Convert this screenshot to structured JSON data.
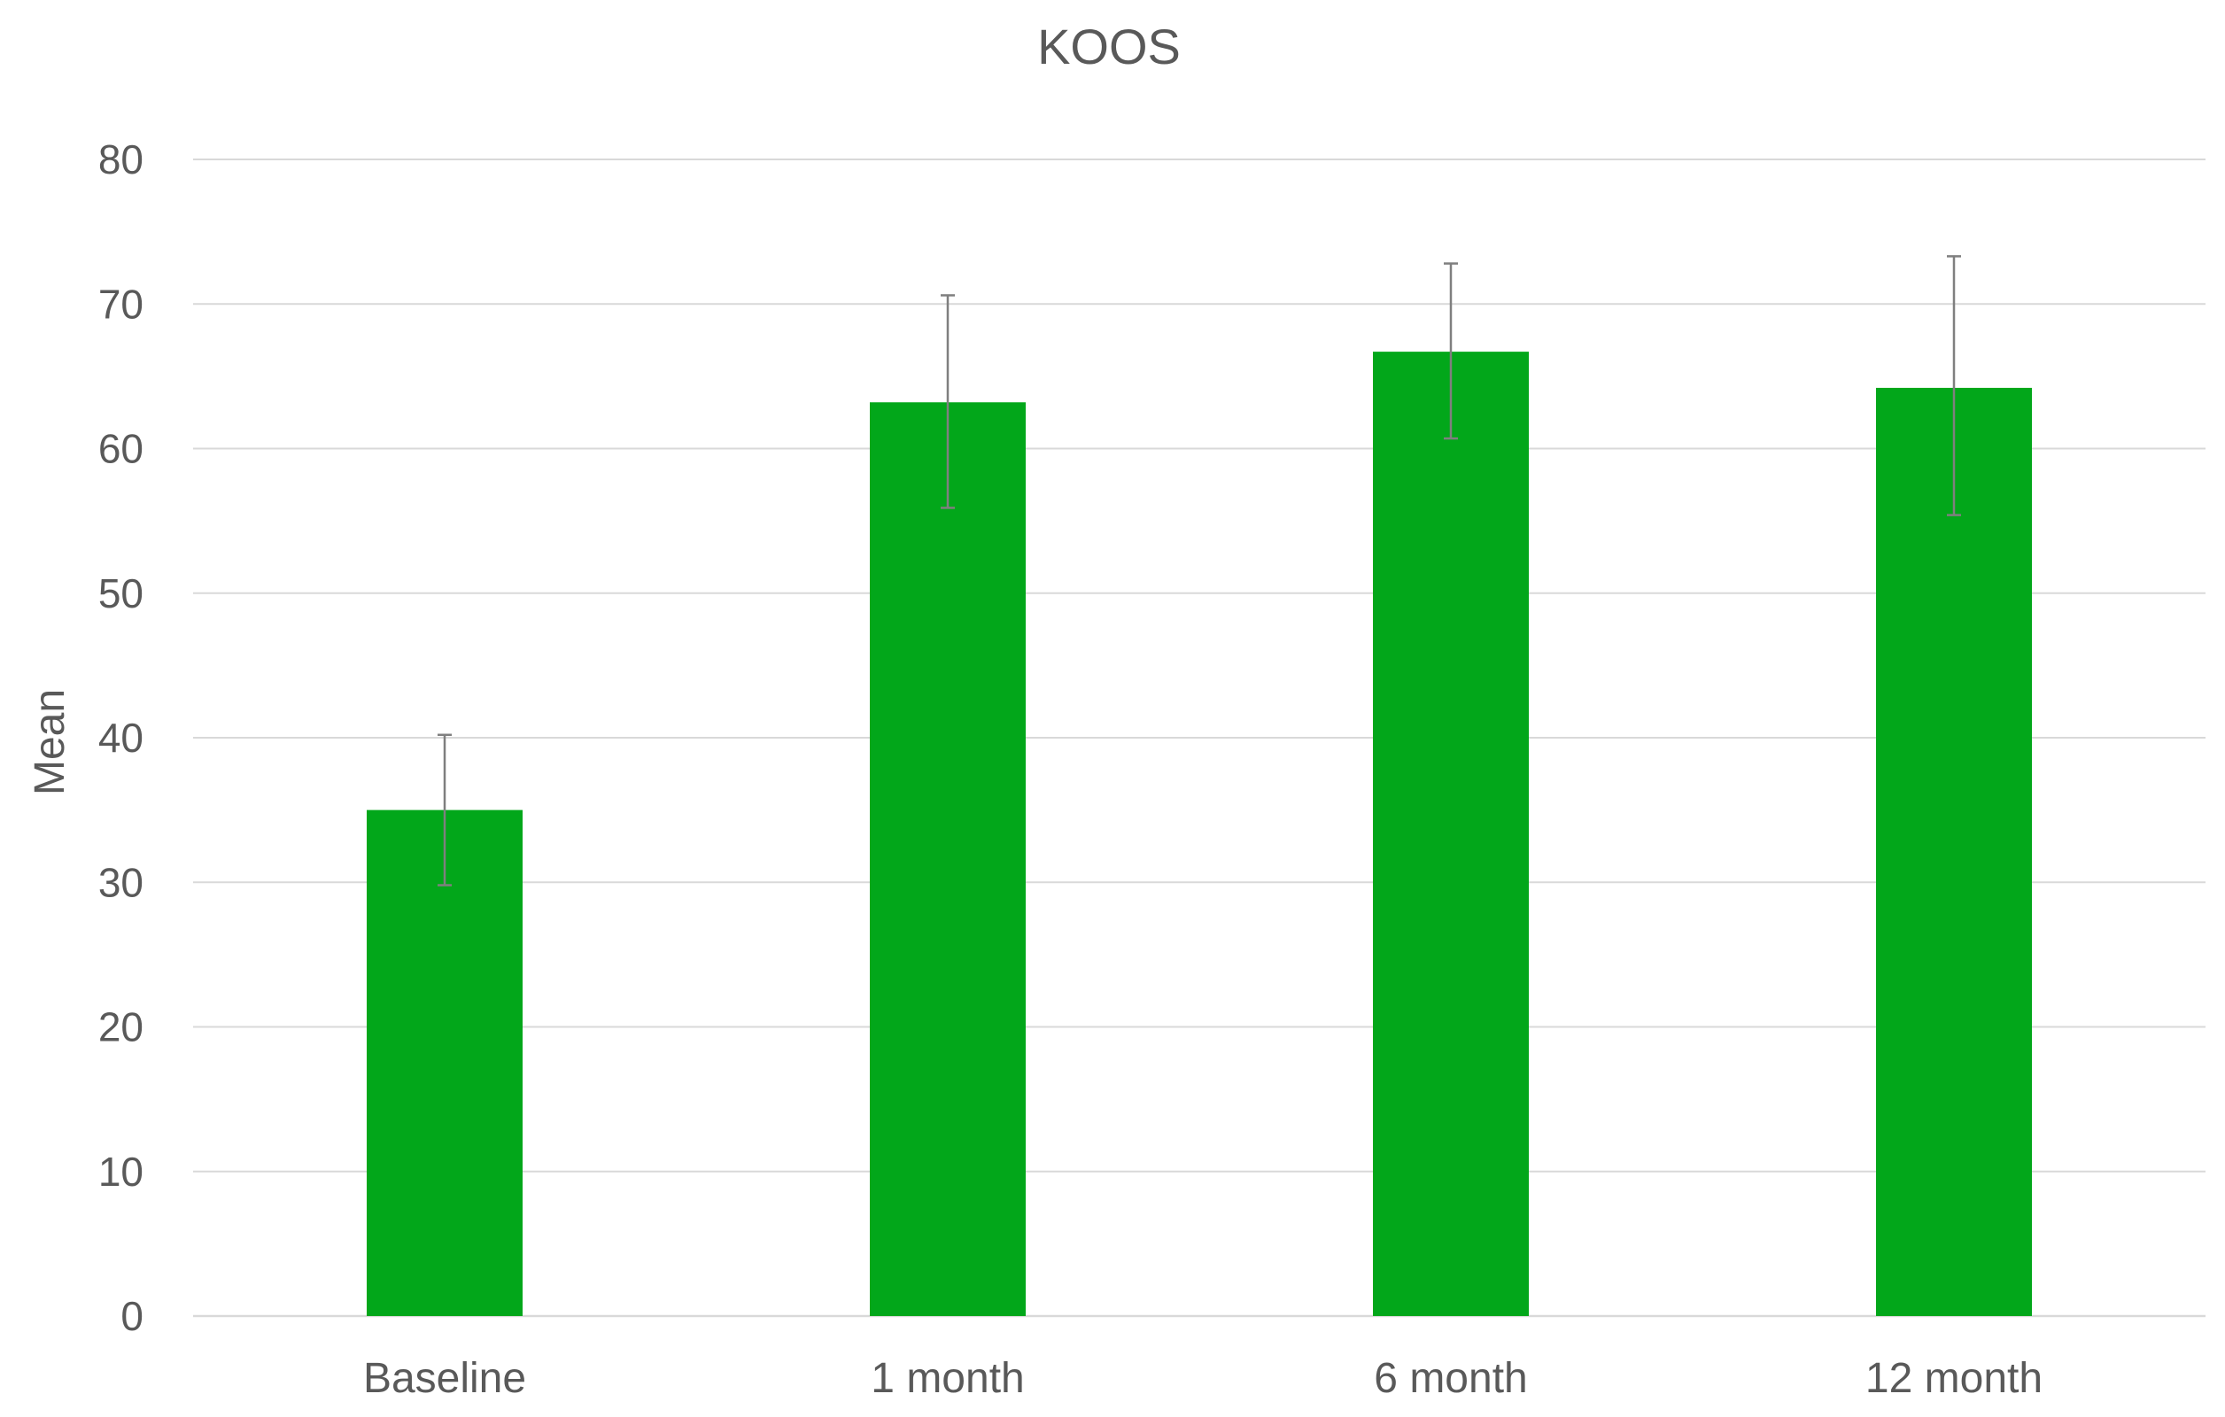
{
  "chart_data": {
    "type": "bar",
    "title": "KOOS",
    "xlabel": "",
    "ylabel": "Mean",
    "categories": [
      "Baseline",
      "1 month",
      "6 month",
      "12 month"
    ],
    "series": [
      {
        "values": [
          35.0,
          63.2,
          66.7,
          64.2
        ],
        "error_low": [
          29.8,
          55.9,
          60.7,
          55.4
        ],
        "error_high": [
          40.2,
          70.6,
          72.8,
          73.3
        ]
      }
    ],
    "ylim": [
      0,
      80
    ],
    "yticks": [
      "0",
      "10",
      "20",
      "30",
      "40",
      "50",
      "60",
      "70",
      "80"
    ],
    "grid": true,
    "legend": "none",
    "colors": {
      "bar": "#02a71a",
      "error_bar": "#7f7f7f",
      "grid": "#d9d9d9",
      "text": "#595959"
    }
  }
}
